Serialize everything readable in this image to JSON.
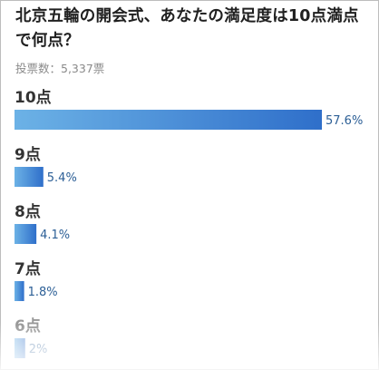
{
  "poll": {
    "title": "北京五輪の開会式、あなたの満足度は10点満点で何点？",
    "votes_text": "投票数：5,337票"
  },
  "colors": {
    "bar_start": "#6cb2e6",
    "bar_end": "#2f6fca",
    "label": "#333333",
    "value": "#2c5f96"
  },
  "chart_data": {
    "type": "bar",
    "orientation": "horizontal",
    "categories": [
      "10点",
      "9点",
      "8点",
      "7点",
      "6点"
    ],
    "values": [
      57.6,
      5.4,
      4.1,
      1.8,
      2
    ],
    "value_labels": [
      "57.6%",
      "5.4%",
      "4.1%",
      "1.8%",
      "2%"
    ],
    "xlim": [
      0,
      57.6
    ]
  }
}
